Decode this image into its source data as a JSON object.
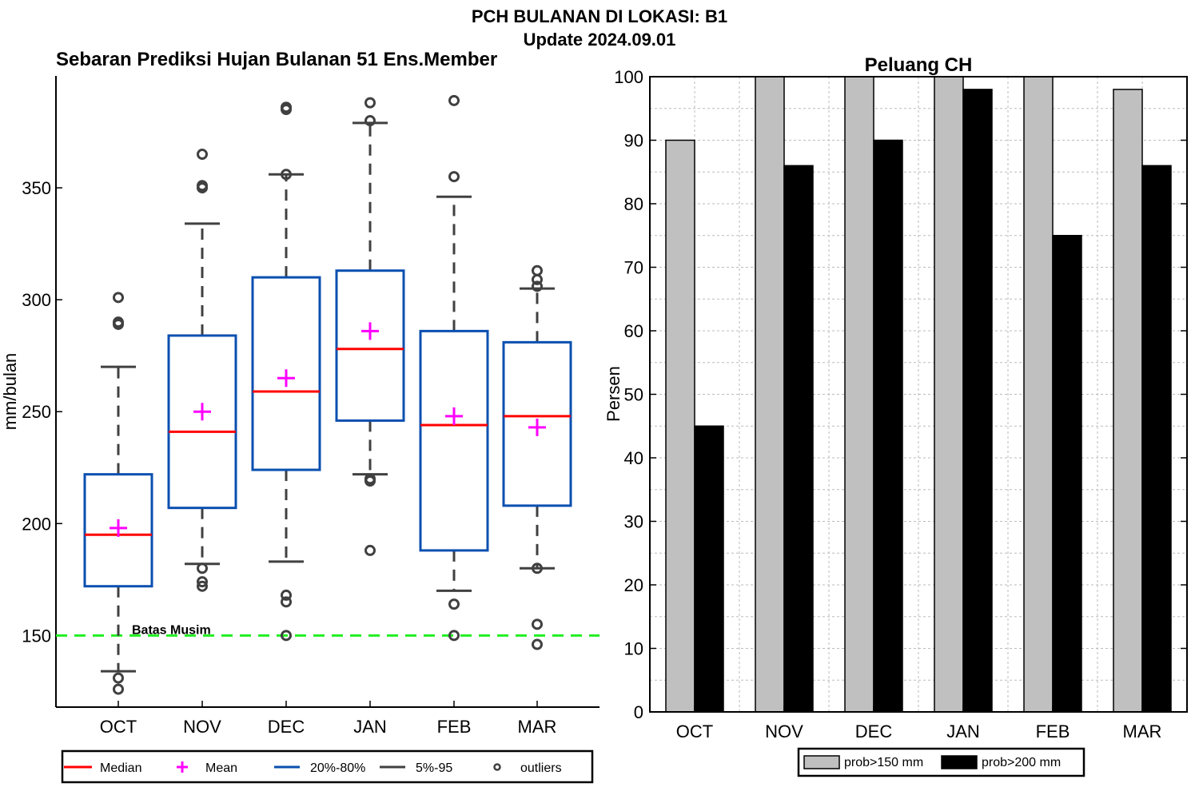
{
  "header": {
    "title": "PCH BULANAN DI LOKASI: B1",
    "subtitle": "Update 2024.09.01"
  },
  "chart_data": [
    {
      "type": "box",
      "title": "Sebaran Prediksi Hujan Bulanan 51 Ens.Member",
      "ylabel": "mm/bulan",
      "xlabel": "",
      "categories": [
        "OCT",
        "NOV",
        "DEC",
        "JAN",
        "FEB",
        "MAR"
      ],
      "ylim": [
        118,
        400
      ],
      "yticks": [
        150,
        200,
        250,
        300,
        350
      ],
      "boxes": [
        {
          "p5": 134,
          "p20": 172,
          "median": 195,
          "mean": 198,
          "p80": 222,
          "p95": 270,
          "outliers": [
            126,
            131,
            289,
            290,
            301
          ]
        },
        {
          "p5": 182,
          "p20": 207,
          "median": 241,
          "mean": 250,
          "p80": 284,
          "p95": 334,
          "outliers": [
            172,
            174,
            180,
            350,
            351,
            365
          ]
        },
        {
          "p5": 183,
          "p20": 224,
          "median": 259,
          "mean": 265,
          "p80": 310,
          "p95": 356,
          "outliers": [
            150,
            165,
            168,
            356,
            385,
            386
          ]
        },
        {
          "p5": 222,
          "p20": 246,
          "median": 278,
          "mean": 286,
          "p80": 313,
          "p95": 379,
          "outliers": [
            188,
            219,
            220,
            380,
            388
          ]
        },
        {
          "p5": 170,
          "p20": 188,
          "median": 244,
          "mean": 248,
          "p80": 286,
          "p95": 346,
          "outliers": [
            150,
            164,
            355,
            389
          ]
        },
        {
          "p5": 180,
          "p20": 208,
          "median": 248,
          "mean": 243,
          "p80": 281,
          "p95": 305,
          "outliers": [
            146,
            155,
            180,
            306,
            309,
            313
          ]
        }
      ],
      "threshold": {
        "value": 150,
        "label": "Batas Musim",
        "color": "#22ee22"
      },
      "legend": [
        "Median",
        "Mean",
        "20%-80%",
        "5%-95",
        "outliers"
      ],
      "legend_position": "bottom",
      "colors": {
        "median": "#ff0000",
        "mean": "#ff00ff",
        "box": "#0a4fb0",
        "whisker": "#404040",
        "outlier": "#404040"
      }
    },
    {
      "type": "bar",
      "title": "Peluang CH",
      "ylabel": "Persen",
      "xlabel": "",
      "categories": [
        "OCT",
        "NOV",
        "DEC",
        "JAN",
        "FEB",
        "MAR"
      ],
      "ylim": [
        0,
        100
      ],
      "yticks": [
        0,
        10,
        20,
        30,
        40,
        50,
        60,
        70,
        80,
        90,
        100
      ],
      "grid": true,
      "series": [
        {
          "name": "prob>150 mm",
          "values": [
            90,
            100,
            100,
            100,
            100,
            98
          ],
          "color": "#c0c0c0"
        },
        {
          "name": "prob>200 mm",
          "values": [
            45,
            86,
            90,
            98,
            75,
            86
          ],
          "color": "#000000"
        }
      ],
      "legend_position": "bottom"
    }
  ]
}
